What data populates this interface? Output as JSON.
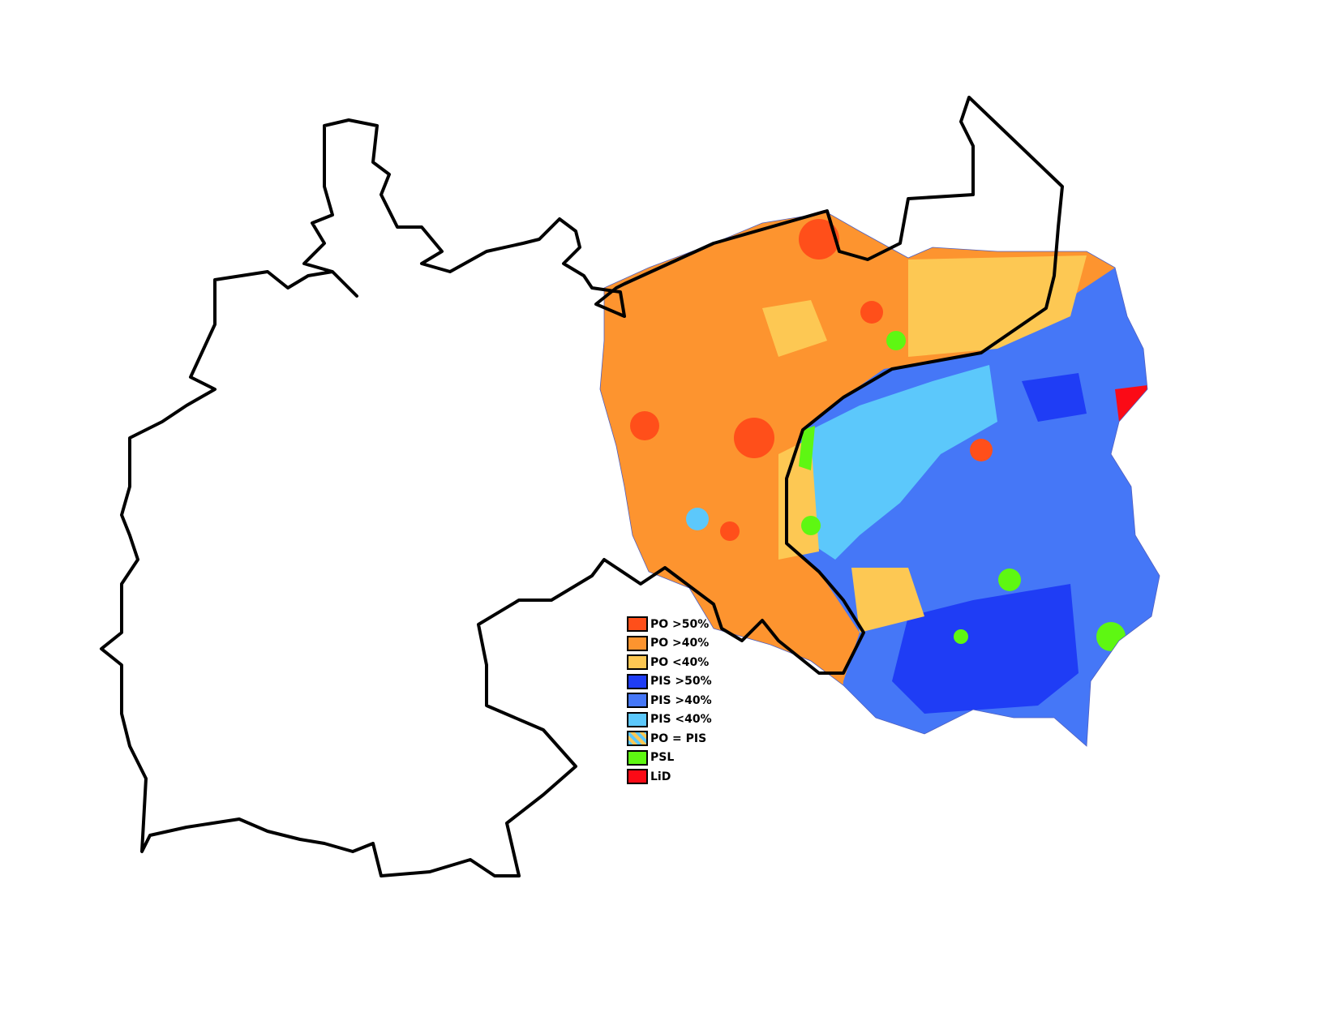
{
  "legend": [
    {
      "label": "PO >50%",
      "color": "#ff4f1a"
    },
    {
      "label": "PO >40%",
      "color": "#fd942f"
    },
    {
      "label": "PO <40%",
      "color": "#fdc853"
    },
    {
      "label": "PIS >50%",
      "color": "#1f3df5"
    },
    {
      "label": "PIS >40%",
      "color": "#4577f7"
    },
    {
      "label": "PIS <40%",
      "color": "#5cc8fb"
    },
    {
      "label": "PO = PIS",
      "color": "striped"
    },
    {
      "label": "PSL",
      "color": "#5ef712"
    },
    {
      "label": "LiD",
      "color": "#fb0a16"
    }
  ]
}
